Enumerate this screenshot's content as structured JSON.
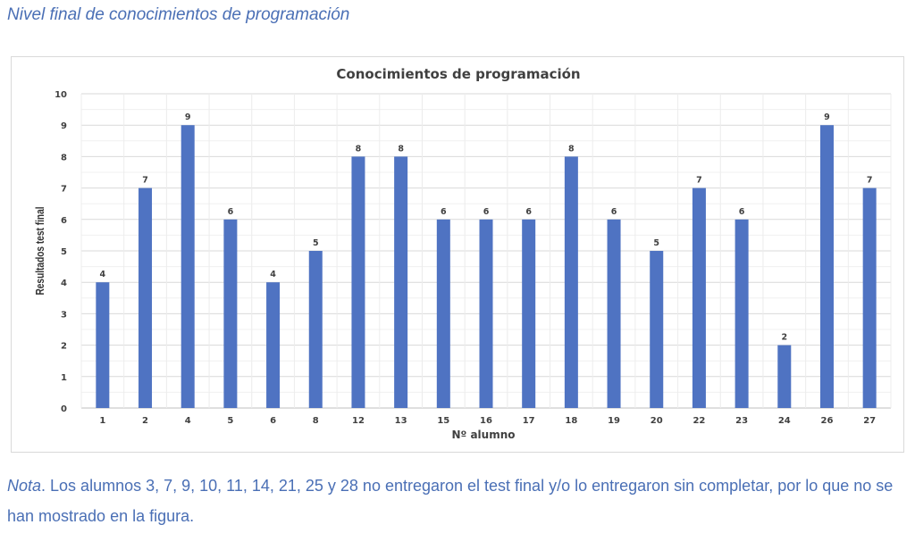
{
  "caption": "Nivel final de conocimientos de programación",
  "note": {
    "lead": "Nota",
    "text": ". Los alumnos 3, 7, 9, 10, 11, 14, 21, 25 y 28 no entregaron el test final y/o lo entregaron sin completar, por lo que no se han mostrado en la figura."
  },
  "chart_data": {
    "type": "bar",
    "title": "Conocimientos de programación",
    "xlabel": "Nº alumno",
    "ylabel": "Resultados test final",
    "categories": [
      "1",
      "2",
      "4",
      "5",
      "6",
      "8",
      "12",
      "13",
      "15",
      "16",
      "17",
      "18",
      "19",
      "20",
      "22",
      "23",
      "24",
      "26",
      "27"
    ],
    "values": [
      4,
      7,
      9,
      6,
      4,
      5,
      8,
      8,
      6,
      6,
      6,
      8,
      6,
      5,
      7,
      6,
      2,
      9,
      7
    ],
    "ylim": [
      0,
      10
    ],
    "yticks": [
      "0",
      "1",
      "2",
      "3",
      "4",
      "5",
      "6",
      "7",
      "8",
      "9",
      "10"
    ],
    "grid": true,
    "bar_color": "#4f73c2"
  }
}
